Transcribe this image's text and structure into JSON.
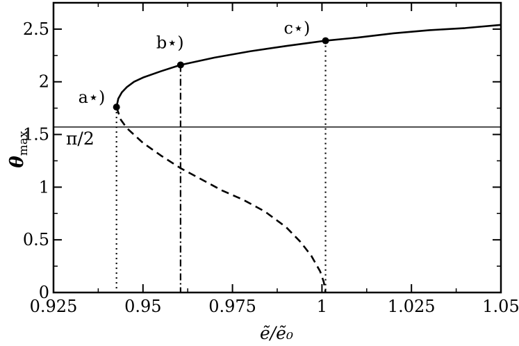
{
  "chart_data": {
    "type": "line",
    "xlabel": "ẽ/ẽ₀",
    "ylabel": "θ",
    "ylabel_sub": "max",
    "xlim": [
      0.925,
      1.05
    ],
    "ylim": [
      0,
      2.75
    ],
    "xticks": [
      {
        "value": 0.925,
        "label": "0.925"
      },
      {
        "value": 0.95,
        "label": "0.95"
      },
      {
        "value": 0.975,
        "label": "0.975"
      },
      {
        "value": 1.0,
        "label": "1"
      },
      {
        "value": 1.025,
        "label": "1.025"
      },
      {
        "value": 1.05,
        "label": "1.05"
      }
    ],
    "yticks": [
      {
        "value": 0,
        "label": "0"
      },
      {
        "value": 0.5,
        "label": "0.5"
      },
      {
        "value": 1,
        "label": "1"
      },
      {
        "value": 1.5,
        "label": "1.5"
      },
      {
        "value": 2,
        "label": "2"
      },
      {
        "value": 2.5,
        "label": "2.5"
      }
    ],
    "series": [
      {
        "style": "solid",
        "points": [
          [
            0.9426,
            1.76
          ],
          [
            0.9431,
            1.84
          ],
          [
            0.9441,
            1.9
          ],
          [
            0.9455,
            1.95
          ],
          [
            0.9475,
            2.0
          ],
          [
            0.95,
            2.04
          ],
          [
            0.955,
            2.1
          ],
          [
            0.9605,
            2.16
          ],
          [
            0.97,
            2.23
          ],
          [
            0.98,
            2.29
          ],
          [
            0.99,
            2.34
          ],
          [
            1.001,
            2.39
          ],
          [
            1.01,
            2.42
          ],
          [
            1.02,
            2.46
          ],
          [
            1.03,
            2.49
          ],
          [
            1.04,
            2.51
          ],
          [
            1.05,
            2.54
          ]
        ]
      },
      {
        "style": "dashed",
        "points": [
          [
            0.9426,
            1.76
          ],
          [
            0.9438,
            1.64
          ],
          [
            0.9455,
            1.56
          ],
          [
            0.95,
            1.42
          ],
          [
            0.955,
            1.3
          ],
          [
            0.9605,
            1.18
          ],
          [
            0.966,
            1.08
          ],
          [
            0.972,
            0.97
          ],
          [
            0.978,
            0.88
          ],
          [
            0.984,
            0.77
          ],
          [
            0.99,
            0.62
          ],
          [
            0.994,
            0.48
          ],
          [
            0.997,
            0.35
          ],
          [
            0.9995,
            0.2
          ],
          [
            1.0005,
            0.1
          ],
          [
            1.001,
            0.0
          ]
        ]
      }
    ],
    "reference_line": {
      "y": 1.5708,
      "label": "π/2"
    },
    "markers": [
      {
        "x": 0.9426,
        "y": 1.76,
        "label": "a⋆)",
        "vline": "dotted"
      },
      {
        "x": 0.9605,
        "y": 2.16,
        "label": "b⋆)",
        "vline": "dashdot"
      },
      {
        "x": 1.001,
        "y": 2.39,
        "label": "c⋆)",
        "vline": "dotted"
      }
    ],
    "grid": false,
    "legend": "none"
  }
}
